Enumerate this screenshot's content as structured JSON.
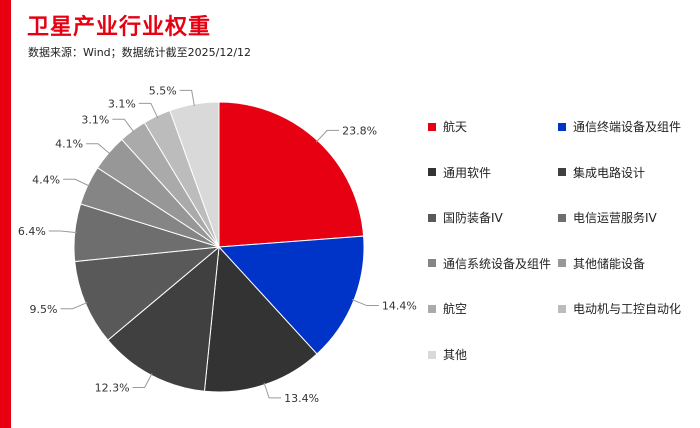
{
  "header": {
    "title": "卫星产业行业权重",
    "source": "数据来源：Wind；数据统计截至2025/12/12"
  },
  "colors": {
    "accent": "#e60012"
  },
  "chart_data": {
    "type": "pie",
    "categories": [
      "航天",
      "通信终端设备及组件",
      "通用软件",
      "集成电路设计",
      "国防装备IV",
      "电信运营服务IV",
      "通信系统设备及组件",
      "其他储能设备",
      "航空",
      "电动机与工控自动化",
      "其他"
    ],
    "values": [
      23.8,
      14.4,
      13.4,
      12.3,
      9.5,
      6.4,
      4.4,
      4.1,
      3.1,
      3.1,
      5.5
    ],
    "labels": [
      "23.8%",
      "14.4%",
      "13.4%",
      "12.3%",
      "9.5%",
      "6.4%",
      "4.4%",
      "4.1%",
      "3.1%",
      "3.1%",
      "5.5%"
    ],
    "colors": [
      "#e60012",
      "#0033c8",
      "#333333",
      "#404040",
      "#595959",
      "#6e6e6e",
      "#858585",
      "#979797",
      "#aaaaaa",
      "#bcbcbc",
      "#d9d9d9"
    ],
    "start": "12 o'clock",
    "direction": "clockwise",
    "legend_position": "right"
  }
}
